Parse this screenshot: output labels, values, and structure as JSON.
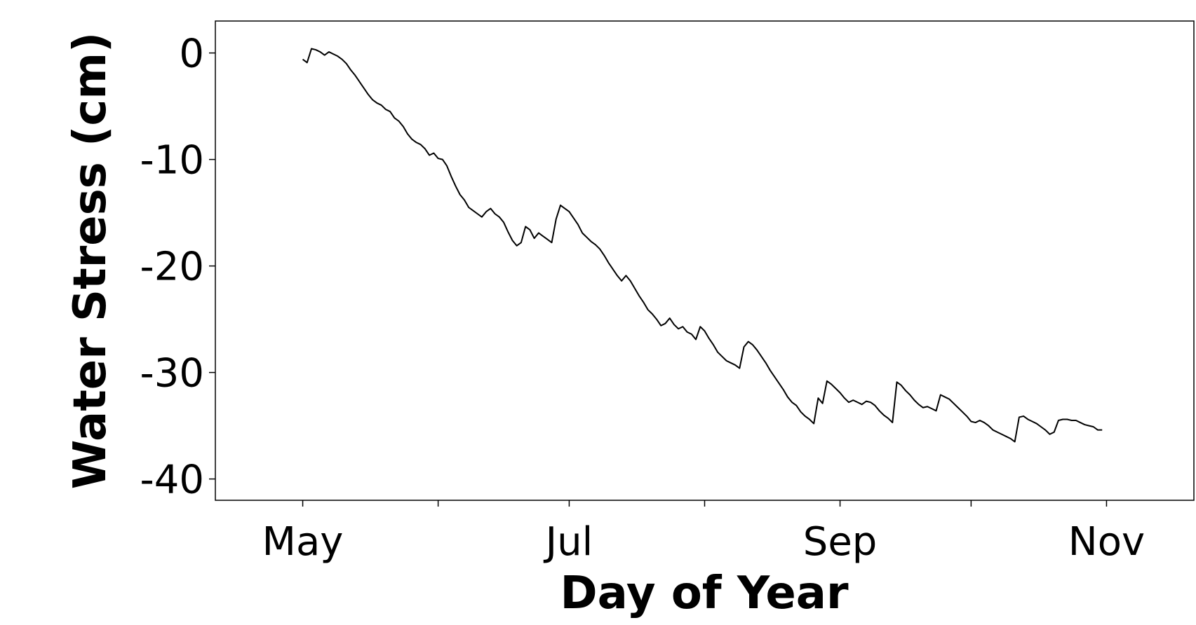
{
  "chart_data": {
    "type": "line",
    "xlabel": "Day of Year",
    "ylabel": "Water Stress (cm)",
    "color": "#000000",
    "xlim": [
      101,
      325
    ],
    "xticks": [
      {
        "value": 121,
        "label": "May"
      },
      {
        "value": 182,
        "label": "Jul"
      },
      {
        "value": 244,
        "label": "Sep"
      },
      {
        "value": 305,
        "label": "Nov"
      }
    ],
    "xminorticks": [
      152,
      213,
      274
    ],
    "ylim": [
      -42,
      3
    ],
    "yticks": [
      0,
      -10,
      -20,
      -30,
      -40
    ],
    "x": [
      121,
      122,
      123,
      124,
      125,
      126,
      127,
      128,
      129,
      130,
      131,
      132,
      133,
      134,
      135,
      136,
      137,
      138,
      139,
      140,
      141,
      142,
      143,
      144,
      145,
      146,
      147,
      148,
      149,
      150,
      151,
      152,
      153,
      154,
      155,
      156,
      157,
      158,
      159,
      160,
      161,
      162,
      163,
      164,
      165,
      166,
      167,
      168,
      169,
      170,
      171,
      172,
      173,
      174,
      175,
      176,
      177,
      178,
      179,
      180,
      181,
      182,
      183,
      184,
      185,
      186,
      187,
      188,
      189,
      190,
      191,
      192,
      193,
      194,
      195,
      196,
      197,
      198,
      199,
      200,
      201,
      202,
      203,
      204,
      205,
      206,
      207,
      208,
      209,
      210,
      211,
      212,
      213,
      214,
      215,
      216,
      217,
      218,
      219,
      220,
      221,
      222,
      223,
      224,
      225,
      226,
      227,
      228,
      229,
      230,
      231,
      232,
      233,
      234,
      235,
      236,
      237,
      238,
      239,
      240,
      241,
      242,
      243,
      244,
      245,
      246,
      247,
      248,
      249,
      250,
      251,
      252,
      253,
      254,
      255,
      256,
      257,
      258,
      259,
      260,
      261,
      262,
      263,
      264,
      265,
      266,
      267,
      268,
      269,
      270,
      271,
      272,
      273,
      274,
      275,
      276,
      277,
      278,
      279,
      280,
      281,
      282,
      283,
      284,
      285,
      286,
      287,
      288,
      289,
      290,
      291,
      292,
      293,
      294,
      295,
      296,
      297,
      298,
      299,
      300,
      301,
      302,
      303,
      304
    ],
    "values": [
      -0.6,
      -0.9,
      0.4,
      0.3,
      0.1,
      -0.2,
      0.1,
      -0.1,
      -0.3,
      -0.6,
      -1.0,
      -1.6,
      -2.1,
      -2.7,
      -3.3,
      -3.9,
      -4.4,
      -4.7,
      -4.9,
      -5.3,
      -5.5,
      -6.1,
      -6.4,
      -6.9,
      -7.6,
      -8.1,
      -8.4,
      -8.6,
      -9.0,
      -9.6,
      -9.4,
      -9.9,
      -10.0,
      -10.6,
      -11.6,
      -12.5,
      -13.3,
      -13.8,
      -14.5,
      -14.8,
      -15.1,
      -15.4,
      -14.9,
      -14.6,
      -15.1,
      -15.4,
      -15.9,
      -16.8,
      -17.6,
      -18.1,
      -17.8,
      -16.3,
      -16.6,
      -17.4,
      -16.9,
      -17.2,
      -17.5,
      -17.8,
      -15.6,
      -14.3,
      -14.6,
      -14.9,
      -15.5,
      -16.1,
      -16.9,
      -17.3,
      -17.7,
      -18.0,
      -18.4,
      -19.0,
      -19.7,
      -20.3,
      -20.9,
      -21.4,
      -20.9,
      -21.4,
      -22.1,
      -22.8,
      -23.4,
      -24.1,
      -24.5,
      -25.0,
      -25.6,
      -25.4,
      -24.9,
      -25.5,
      -25.9,
      -25.7,
      -26.2,
      -26.4,
      -26.9,
      -25.7,
      -26.1,
      -26.8,
      -27.4,
      -28.1,
      -28.5,
      -28.9,
      -29.1,
      -29.3,
      -29.6,
      -27.6,
      -27.1,
      -27.4,
      -27.9,
      -28.5,
      -29.1,
      -29.8,
      -30.4,
      -31.0,
      -31.6,
      -32.3,
      -32.8,
      -33.1,
      -33.7,
      -34.1,
      -34.4,
      -34.8,
      -32.4,
      -32.9,
      -30.8,
      -31.1,
      -31.5,
      -31.9,
      -32.4,
      -32.8,
      -32.6,
      -32.8,
      -33.0,
      -32.7,
      -32.8,
      -33.1,
      -33.6,
      -34.0,
      -34.3,
      -34.7,
      -30.9,
      -31.2,
      -31.7,
      -32.1,
      -32.6,
      -33.0,
      -33.3,
      -33.2,
      -33.4,
      -33.6,
      -32.1,
      -32.3,
      -32.5,
      -32.9,
      -33.3,
      -33.7,
      -34.1,
      -34.6,
      -34.7,
      -34.5,
      -34.7,
      -35.0,
      -35.4,
      -35.6,
      -35.8,
      -36.0,
      -36.2,
      -36.5,
      -34.2,
      -34.1,
      -34.4,
      -34.6,
      -34.8,
      -35.1,
      -35.4,
      -35.8,
      -35.6,
      -34.5,
      -34.4,
      -34.4,
      -34.5,
      -34.5,
      -34.7,
      -34.9,
      -35.0,
      -35.1,
      -35.4,
      -35.4
    ]
  }
}
